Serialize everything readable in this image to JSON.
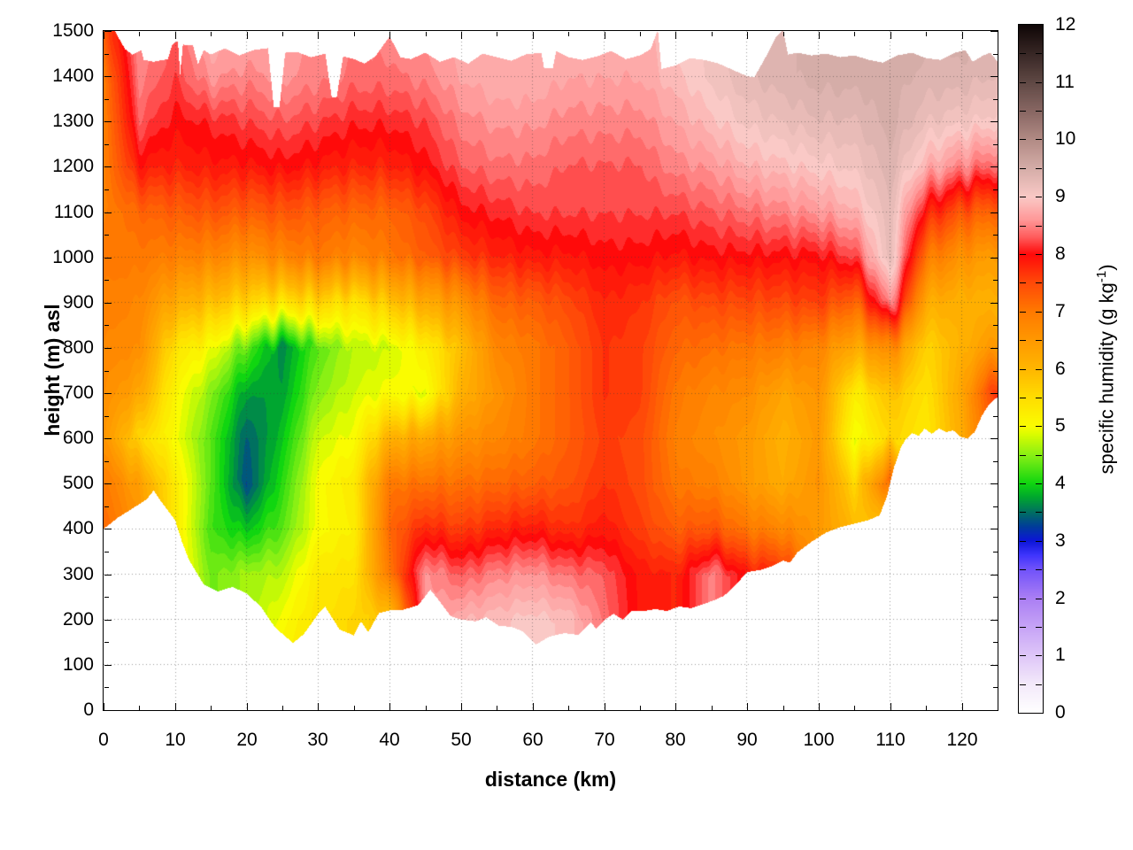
{
  "figure": {
    "xlabel": "distance (km)",
    "ylabel": "height (m) asl",
    "x_tick_labels": [
      0,
      10,
      20,
      30,
      40,
      50,
      60,
      70,
      80,
      90,
      100,
      110,
      120
    ],
    "x_minor_ticks": [
      5,
      15,
      25,
      35,
      45,
      55,
      65,
      75,
      85,
      95,
      105,
      115
    ],
    "y_tick_labels": [
      0,
      100,
      200,
      300,
      400,
      500,
      600,
      700,
      800,
      900,
      1000,
      1100,
      1200,
      1300,
      1400,
      1500
    ],
    "y_minor_step": 50,
    "background": "#ffffff",
    "grid_color": "#555555"
  },
  "colorbar": {
    "label_main": "specific humidity (g kg",
    "label_sup": "-1",
    "label_close": ")",
    "tick_labels": [
      0,
      1,
      2,
      3,
      4,
      5,
      6,
      7,
      8,
      9,
      10,
      11,
      12
    ],
    "dash_step": 0.5,
    "min": 0,
    "max": 12
  },
  "chart_data": {
    "type": "heatmap",
    "title": "",
    "xlabel": "distance (km)",
    "ylabel": "height (m) asl",
    "zlabel": "specific humidity (g kg-1)",
    "x_range_km": [
      0,
      125
    ],
    "y_range_m": [
      0,
      1500
    ],
    "z_range": [
      0,
      12
    ],
    "grid": true,
    "legend_position": "right-colorbar",
    "x_step_km": 5,
    "h_step_m": 100,
    "grid_x_km": [
      0,
      5,
      10,
      15,
      20,
      25,
      30,
      35,
      40,
      45,
      50,
      55,
      60,
      65,
      70,
      75,
      80,
      85,
      90,
      95,
      100,
      105,
      110,
      115,
      120,
      125
    ],
    "grid_h_m": [
      0,
      100,
      200,
      300,
      400,
      500,
      600,
      700,
      800,
      900,
      1000,
      1100,
      1200,
      1300,
      1400,
      1500
    ],
    "q_g_per_kg": [
      [
        7.2,
        7.2,
        7.2,
        7.2,
        7.2,
        7.0,
        6.6,
        6.7,
        6.8,
        6.9,
        7.0,
        6.9,
        6.9,
        6.9,
        7.0,
        7.4
      ],
      [
        6.6,
        6.6,
        6.6,
        6.6,
        6.6,
        6.4,
        5.6,
        6.3,
        6.7,
        6.8,
        7.0,
        7.2,
        7.9,
        8.3,
        8.5,
        8.6
      ],
      [
        5.3,
        5.3,
        5.3,
        5.3,
        5.3,
        5.3,
        5.0,
        5.1,
        5.4,
        6.2,
        6.9,
        7.3,
        7.8,
        8.0,
        8.2,
        8.3
      ],
      [
        4.4,
        4.4,
        4.4,
        4.4,
        4.2,
        4.3,
        4.3,
        4.5,
        5.0,
        5.9,
        6.8,
        7.4,
        7.9,
        8.1,
        8.6,
        8.8
      ],
      [
        4.6,
        4.6,
        4.6,
        4.6,
        3.9,
        3.3,
        3.4,
        3.7,
        4.3,
        5.6,
        6.6,
        7.3,
        7.9,
        8.2,
        8.5,
        8.8
      ],
      [
        5.2,
        5.2,
        5.0,
        4.7,
        4.3,
        4.1,
        3.9,
        3.7,
        3.6,
        5.4,
        6.8,
        7.4,
        8.0,
        8.3,
        8.6,
        8.7
      ],
      [
        5.4,
        5.4,
        5.4,
        5.3,
        5.0,
        5.0,
        4.8,
        4.5,
        4.3,
        5.6,
        7.0,
        7.3,
        7.9,
        8.2,
        8.5,
        8.5
      ],
      [
        5.6,
        5.6,
        5.6,
        5.4,
        5.2,
        5.3,
        5.0,
        4.8,
        4.7,
        5.4,
        6.8,
        7.2,
        7.8,
        8.1,
        8.4,
        8.5
      ],
      [
        5.8,
        5.8,
        5.8,
        7.0,
        7.2,
        7.0,
        6.1,
        5.0,
        4.8,
        5.8,
        7.0,
        7.2,
        7.8,
        8.1,
        8.4,
        8.5
      ],
      [
        8.6,
        8.6,
        8.6,
        8.6,
        7.8,
        7.1,
        6.3,
        4.9,
        5.2,
        6.2,
        7.3,
        7.5,
        8.0,
        8.2,
        8.5,
        8.6
      ],
      [
        8.8,
        8.8,
        8.8,
        8.3,
        7.6,
        7.1,
        6.6,
        6.1,
        5.9,
        6.6,
        7.6,
        8.0,
        8.3,
        8.5,
        8.7,
        8.8
      ],
      [
        8.9,
        8.9,
        8.9,
        8.5,
        7.8,
        7.2,
        6.8,
        6.6,
        6.8,
        7.2,
        7.8,
        8.1,
        8.4,
        8.6,
        8.8,
        8.8
      ],
      [
        9.0,
        9.0,
        9.0,
        8.6,
        7.9,
        7.3,
        7.0,
        7.0,
        7.0,
        7.3,
        7.9,
        8.2,
        8.4,
        8.6,
        8.8,
        8.8
      ],
      [
        8.9,
        8.9,
        8.9,
        8.4,
        7.7,
        7.4,
        7.3,
        7.3,
        7.3,
        7.5,
        7.9,
        8.2,
        8.3,
        8.5,
        8.7,
        8.7
      ],
      [
        8.4,
        8.4,
        8.4,
        8.3,
        7.9,
        7.7,
        7.6,
        7.7,
        7.7,
        7.8,
        8.0,
        8.2,
        8.3,
        8.5,
        8.7,
        8.7
      ],
      [
        7.9,
        7.9,
        7.9,
        7.9,
        7.6,
        7.5,
        7.5,
        7.6,
        7.6,
        7.7,
        8.0,
        8.2,
        8.3,
        8.5,
        8.7,
        8.7
      ],
      [
        7.8,
        7.8,
        7.8,
        7.8,
        7.3,
        7.0,
        6.9,
        7.0,
        7.2,
        7.4,
        7.9,
        8.2,
        8.5,
        8.7,
        8.9,
        9.0
      ],
      [
        8.5,
        8.5,
        8.5,
        8.5,
        7.4,
        6.9,
        6.7,
        6.8,
        7.1,
        7.5,
        8.0,
        8.3,
        8.6,
        8.9,
        9.1,
        9.1
      ],
      [
        7.9,
        7.9,
        7.9,
        7.9,
        7.0,
        6.5,
        6.5,
        6.7,
        7.0,
        7.5,
        8.0,
        8.4,
        8.8,
        9.1,
        9.3,
        9.3
      ],
      [
        7.8,
        7.8,
        7.8,
        7.8,
        6.8,
        6.2,
        6.1,
        6.3,
        6.9,
        7.5,
        8.0,
        8.5,
        8.9,
        9.2,
        9.4,
        9.4
      ],
      [
        6.5,
        6.5,
        6.5,
        6.5,
        6.5,
        6.6,
        6.5,
        6.6,
        6.8,
        7.6,
        8.0,
        8.6,
        9.0,
        9.3,
        9.5,
        9.5
      ],
      [
        6.0,
        6.0,
        6.0,
        6.0,
        6.0,
        5.6,
        4.9,
        5.2,
        6.2,
        7.2,
        8.2,
        8.8,
        9.1,
        9.3,
        9.5,
        9.5
      ],
      [
        5.6,
        5.6,
        5.6,
        5.6,
        5.6,
        7.2,
        5.6,
        5.9,
        6.8,
        8.6,
        9.3,
        9.3,
        9.4,
        9.5,
        9.5,
        9.6
      ],
      [
        5.3,
        5.3,
        5.3,
        5.3,
        5.3,
        5.3,
        5.3,
        5.4,
        5.6,
        6.2,
        7.0,
        7.9,
        8.8,
        9.2,
        9.4,
        9.5
      ],
      [
        6.2,
        6.2,
        6.2,
        6.2,
        6.2,
        6.2,
        6.2,
        6.3,
        6.1,
        6.1,
        6.6,
        7.4,
        8.5,
        9.1,
        9.4,
        9.5
      ],
      [
        7.5,
        7.5,
        7.5,
        7.5,
        7.5,
        7.5,
        7.5,
        7.8,
        6.6,
        6.1,
        6.4,
        7.2,
        8.3,
        9.0,
        9.3,
        9.5
      ]
    ],
    "terrain_profile_km_m": [
      [
        0,
        400
      ],
      [
        2,
        425
      ],
      [
        4,
        445
      ],
      [
        6,
        465
      ],
      [
        7,
        485
      ],
      [
        8,
        462
      ],
      [
        10,
        420
      ],
      [
        11,
        370
      ],
      [
        12,
        330
      ],
      [
        14,
        278
      ],
      [
        16,
        262
      ],
      [
        18,
        272
      ],
      [
        20,
        258
      ],
      [
        22,
        228
      ],
      [
        24,
        182
      ],
      [
        26.5,
        148
      ],
      [
        28,
        168
      ],
      [
        30,
        212
      ],
      [
        31,
        228
      ],
      [
        33,
        178
      ],
      [
        35,
        165
      ],
      [
        36,
        196
      ],
      [
        37,
        172
      ],
      [
        38.5,
        214
      ],
      [
        40,
        220
      ],
      [
        42,
        222
      ],
      [
        44,
        232
      ],
      [
        45.7,
        266
      ],
      [
        47,
        240
      ],
      [
        48.5,
        208
      ],
      [
        50,
        200
      ],
      [
        52,
        196
      ],
      [
        53.5,
        205
      ],
      [
        55.3,
        186
      ],
      [
        57,
        184
      ],
      [
        58.6,
        174
      ],
      [
        60.5,
        145
      ],
      [
        62.3,
        162
      ],
      [
        64.4,
        170
      ],
      [
        66.4,
        166
      ],
      [
        68.1,
        194
      ],
      [
        68.9,
        180
      ],
      [
        70.1,
        200
      ],
      [
        71.3,
        213
      ],
      [
        72.6,
        200
      ],
      [
        73.8,
        219
      ],
      [
        75.6,
        219
      ],
      [
        77.2,
        223
      ],
      [
        78.8,
        219
      ],
      [
        80.5,
        229
      ],
      [
        82.1,
        225
      ],
      [
        83.7,
        233
      ],
      [
        85.4,
        243
      ],
      [
        86.7,
        252
      ],
      [
        88,
        270
      ],
      [
        90,
        305
      ],
      [
        92,
        310
      ],
      [
        93.5,
        318
      ],
      [
        95,
        330
      ],
      [
        96,
        326
      ],
      [
        97,
        348
      ],
      [
        99,
        372
      ],
      [
        101,
        392
      ],
      [
        103,
        404
      ],
      [
        105,
        412
      ],
      [
        107,
        420
      ],
      [
        108.5,
        430
      ],
      [
        109.5,
        470
      ],
      [
        110.5,
        535
      ],
      [
        111.4,
        577
      ],
      [
        112,
        595
      ],
      [
        113,
        612
      ],
      [
        114,
        606
      ],
      [
        114.8,
        622
      ],
      [
        115.8,
        610
      ],
      [
        116.8,
        622
      ],
      [
        117.8,
        614
      ],
      [
        118.8,
        618
      ],
      [
        119.8,
        604
      ],
      [
        120.8,
        600
      ],
      [
        121.8,
        614
      ],
      [
        122.8,
        650
      ],
      [
        123.8,
        675
      ],
      [
        125,
        692
      ]
    ],
    "data_top_profile_km_m": [
      [
        0,
        1502
      ],
      [
        1.5,
        1502
      ],
      [
        3,
        1460
      ],
      [
        4,
        1448
      ],
      [
        5.3,
        1458
      ],
      [
        5.6,
        1436
      ],
      [
        7,
        1432
      ],
      [
        9,
        1438
      ],
      [
        9.6,
        1470
      ],
      [
        10.4,
        1478
      ],
      [
        10.7,
        1404
      ],
      [
        11.1,
        1470
      ],
      [
        12.5,
        1468
      ],
      [
        13.2,
        1426
      ],
      [
        14,
        1458
      ],
      [
        15,
        1448
      ],
      [
        17,
        1462
      ],
      [
        19,
        1446
      ],
      [
        21,
        1458
      ],
      [
        23,
        1462
      ],
      [
        23.8,
        1332
      ],
      [
        24.6,
        1332
      ],
      [
        25.4,
        1452
      ],
      [
        27,
        1454
      ],
      [
        29,
        1442
      ],
      [
        31,
        1450
      ],
      [
        31.9,
        1354
      ],
      [
        32.6,
        1354
      ],
      [
        33.5,
        1444
      ],
      [
        35,
        1438
      ],
      [
        36.5,
        1428
      ],
      [
        38,
        1444
      ],
      [
        40,
        1488
      ],
      [
        41.5,
        1442
      ],
      [
        43,
        1438
      ],
      [
        45,
        1452
      ],
      [
        47,
        1432
      ],
      [
        49,
        1442
      ],
      [
        51,
        1428
      ],
      [
        53,
        1450
      ],
      [
        55,
        1442
      ],
      [
        57,
        1434
      ],
      [
        59,
        1448
      ],
      [
        61.2,
        1452
      ],
      [
        61.6,
        1418
      ],
      [
        62.8,
        1418
      ],
      [
        63.3,
        1456
      ],
      [
        65,
        1442
      ],
      [
        67,
        1436
      ],
      [
        69,
        1444
      ],
      [
        71,
        1456
      ],
      [
        73,
        1438
      ],
      [
        75,
        1446
      ],
      [
        76.5,
        1460
      ],
      [
        77.5,
        1502
      ],
      [
        78,
        1416
      ],
      [
        80,
        1424
      ],
      [
        82,
        1440
      ],
      [
        84,
        1436
      ],
      [
        86,
        1428
      ],
      [
        88,
        1414
      ],
      [
        90,
        1400
      ],
      [
        91,
        1398
      ],
      [
        92.5,
        1440
      ],
      [
        94,
        1486
      ],
      [
        95,
        1502
      ],
      [
        95.7,
        1448
      ],
      [
        97,
        1452
      ],
      [
        99,
        1446
      ],
      [
        101,
        1450
      ],
      [
        103,
        1442
      ],
      [
        105,
        1446
      ],
      [
        107,
        1436
      ],
      [
        109,
        1430
      ],
      [
        111,
        1446
      ],
      [
        113,
        1452
      ],
      [
        115,
        1440
      ],
      [
        117,
        1436
      ],
      [
        119,
        1452
      ],
      [
        120.5,
        1458
      ],
      [
        121.5,
        1432
      ],
      [
        123,
        1446
      ],
      [
        124,
        1452
      ],
      [
        125,
        1432
      ]
    ],
    "band_interval": 0.125,
    "palette_stops": [
      [
        0,
        255,
        255,
        255
      ],
      [
        0.5,
        243,
        233,
        250
      ],
      [
        1,
        222,
        198,
        248
      ],
      [
        1.5,
        198,
        163,
        246
      ],
      [
        2,
        170,
        126,
        244
      ],
      [
        2.5,
        112,
        82,
        250
      ],
      [
        2.75,
        62,
        52,
        252
      ],
      [
        3,
        12,
        22,
        215
      ],
      [
        3.25,
        0,
        62,
        152
      ],
      [
        3.5,
        0,
        112,
        96
      ],
      [
        3.75,
        0,
        166,
        48
      ],
      [
        4,
        16,
        214,
        16
      ],
      [
        4.5,
        138,
        240,
        20
      ],
      [
        4.85,
        218,
        252,
        0
      ],
      [
        5,
        250,
        252,
        0
      ],
      [
        5.5,
        255,
        221,
        0
      ],
      [
        6,
        255,
        182,
        0
      ],
      [
        6.5,
        255,
        153,
        0
      ],
      [
        7,
        255,
        121,
        0
      ],
      [
        7.5,
        255,
        74,
        8
      ],
      [
        8,
        255,
        10,
        10
      ],
      [
        8.3,
        255,
        92,
        92
      ],
      [
        8.6,
        255,
        152,
        152
      ],
      [
        9,
        250,
        201,
        198
      ],
      [
        9.5,
        213,
        173,
        168
      ],
      [
        10,
        178,
        139,
        133
      ],
      [
        10.5,
        136,
        103,
        99
      ],
      [
        11,
        96,
        73,
        69
      ],
      [
        11.5,
        56,
        39,
        37
      ],
      [
        12,
        16,
        7,
        7
      ]
    ]
  }
}
